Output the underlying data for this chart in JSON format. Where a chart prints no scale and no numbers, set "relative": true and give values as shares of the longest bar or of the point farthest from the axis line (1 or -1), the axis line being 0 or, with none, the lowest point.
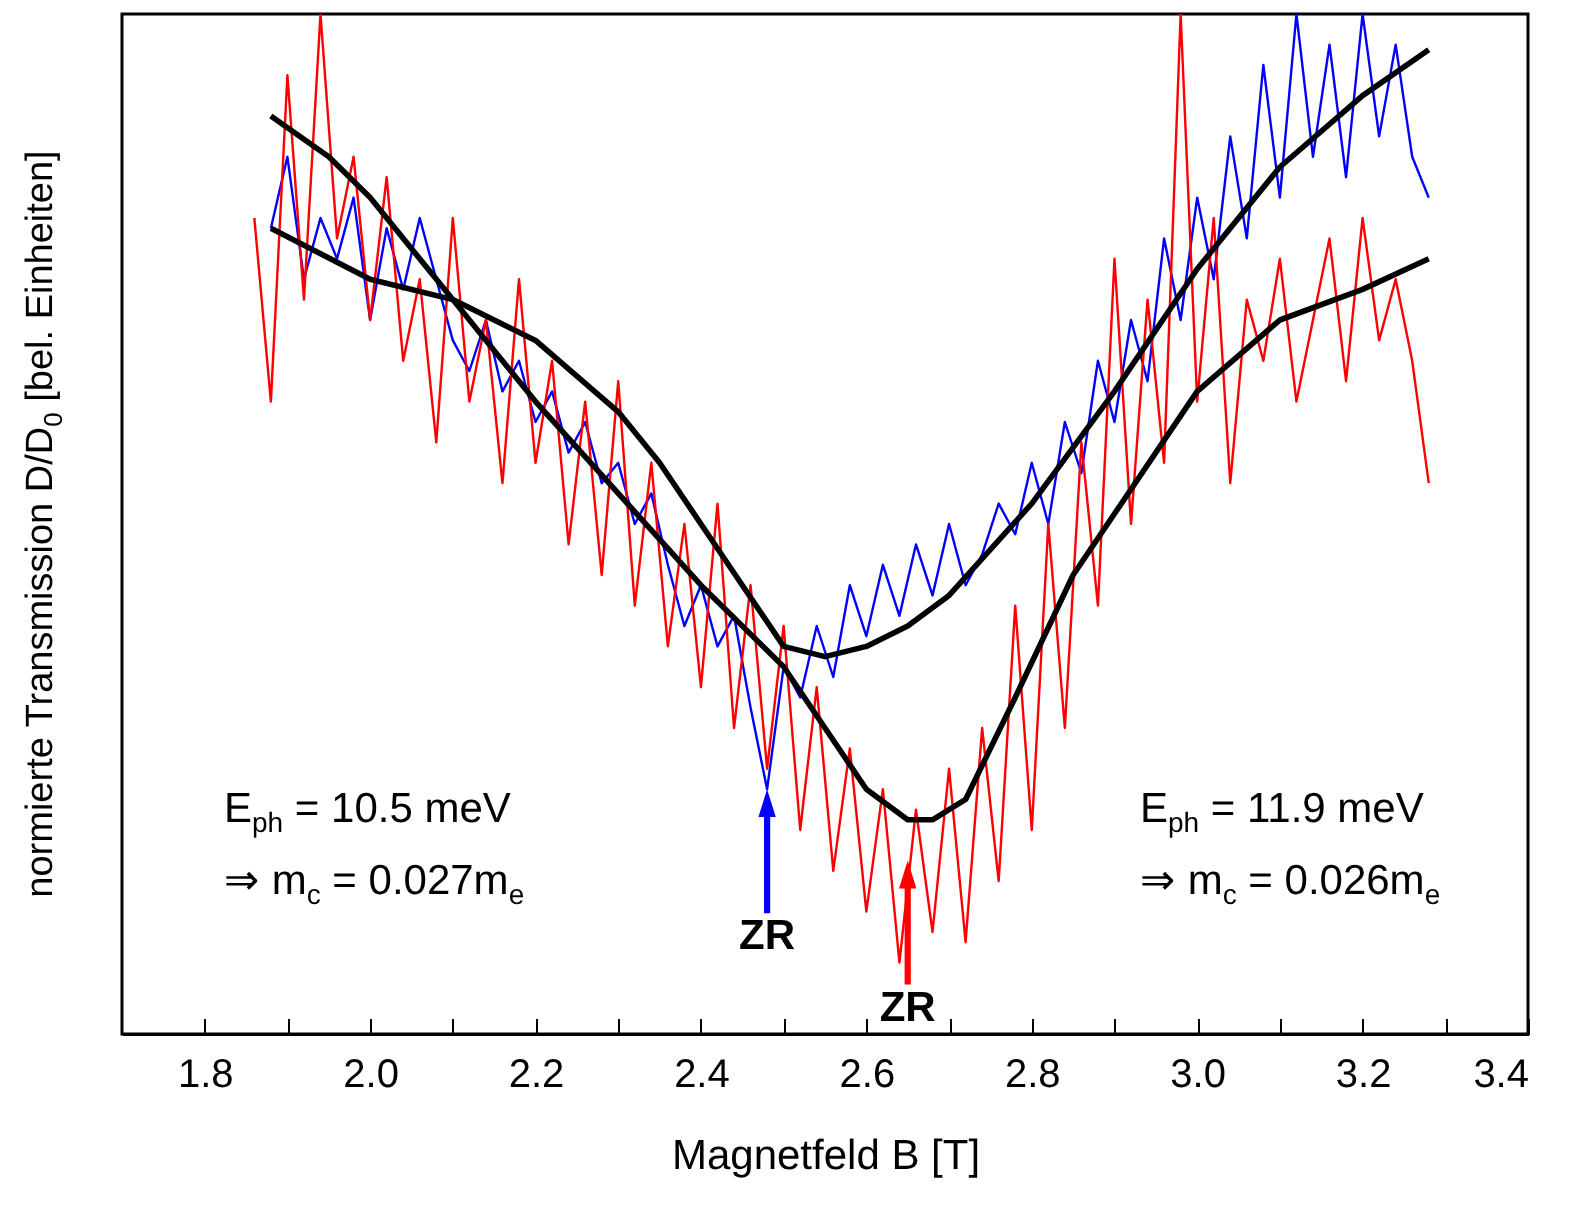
{
  "chart_data": {
    "type": "line",
    "relative": true,
    "xlabel": "Magnetfeld B [T]",
    "ylabel": "normierte Transmission D/D$_{0}$ [bel. Einheiten]",
    "xlim": [
      1.7,
      3.4
    ],
    "xticks": [
      {
        "value": 1.8,
        "label": "1.8"
      },
      {
        "value": 1.9,
        "label": null
      },
      {
        "value": 2.0,
        "label": "2.0"
      },
      {
        "value": 2.1,
        "label": null
      },
      {
        "value": 2.2,
        "label": "2.2"
      },
      {
        "value": 2.3,
        "label": null
      },
      {
        "value": 2.4,
        "label": "2.4"
      },
      {
        "value": 2.5,
        "label": null
      },
      {
        "value": 2.6,
        "label": "2.6"
      },
      {
        "value": 2.7,
        "label": null
      },
      {
        "value": 2.8,
        "label": "2.8"
      },
      {
        "value": 2.9,
        "label": null
      },
      {
        "value": 3.0,
        "label": "3.0"
      },
      {
        "value": 3.1,
        "label": null
      },
      {
        "value": 3.2,
        "label": "3.2"
      },
      {
        "value": 3.3,
        "label": null
      },
      {
        "value": 3.4,
        "label": "3.4"
      }
    ],
    "grid": false,
    "series": [
      {
        "color": "#0000ff",
        "x": [
          1.88,
          1.9,
          1.92,
          1.94,
          1.96,
          1.98,
          2.0,
          2.02,
          2.04,
          2.06,
          2.08,
          2.1,
          2.12,
          2.14,
          2.16,
          2.18,
          2.2,
          2.22,
          2.24,
          2.26,
          2.28,
          2.3,
          2.32,
          2.34,
          2.36,
          2.38,
          2.4,
          2.42,
          2.44,
          2.46,
          2.48,
          2.5,
          2.52,
          2.54,
          2.56,
          2.58,
          2.6,
          2.62,
          2.64,
          2.66,
          2.68,
          2.7,
          2.72,
          2.74,
          2.76,
          2.78,
          2.8,
          2.82,
          2.84,
          2.86,
          2.88,
          2.9,
          2.92,
          2.94,
          2.96,
          2.98,
          3.0,
          3.02,
          3.04,
          3.06,
          3.08,
          3.1,
          3.12,
          3.14,
          3.16,
          3.18,
          3.2,
          3.22,
          3.24,
          3.26,
          3.28
        ],
        "values": [
          0.79,
          0.86,
          0.74,
          0.8,
          0.76,
          0.82,
          0.7,
          0.79,
          0.73,
          0.8,
          0.74,
          0.68,
          0.65,
          0.7,
          0.63,
          0.66,
          0.6,
          0.63,
          0.57,
          0.6,
          0.54,
          0.56,
          0.5,
          0.53,
          0.46,
          0.4,
          0.44,
          0.38,
          0.41,
          0.32,
          0.24,
          0.36,
          0.33,
          0.4,
          0.35,
          0.44,
          0.39,
          0.46,
          0.41,
          0.48,
          0.43,
          0.5,
          0.44,
          0.47,
          0.52,
          0.49,
          0.56,
          0.5,
          0.6,
          0.55,
          0.66,
          0.6,
          0.7,
          0.64,
          0.78,
          0.7,
          0.82,
          0.74,
          0.88,
          0.78,
          0.95,
          0.82,
          1.0,
          0.86,
          0.97,
          0.84,
          1.0,
          0.88,
          0.97,
          0.86,
          0.82
        ]
      },
      {
        "color": "#ff0000",
        "x": [
          1.86,
          1.88,
          1.9,
          1.92,
          1.94,
          1.96,
          1.98,
          2.0,
          2.02,
          2.04,
          2.06,
          2.08,
          2.1,
          2.12,
          2.14,
          2.16,
          2.18,
          2.2,
          2.22,
          2.24,
          2.26,
          2.28,
          2.3,
          2.32,
          2.34,
          2.36,
          2.38,
          2.4,
          2.42,
          2.44,
          2.46,
          2.48,
          2.5,
          2.52,
          2.54,
          2.56,
          2.58,
          2.6,
          2.62,
          2.64,
          2.66,
          2.68,
          2.7,
          2.72,
          2.74,
          2.76,
          2.78,
          2.8,
          2.82,
          2.84,
          2.86,
          2.88,
          2.9,
          2.92,
          2.94,
          2.96,
          2.98,
          3.0,
          3.02,
          3.04,
          3.06,
          3.08,
          3.1,
          3.12,
          3.14,
          3.16,
          3.18,
          3.2,
          3.22,
          3.24,
          3.26,
          3.28
        ],
        "values": [
          0.8,
          0.62,
          0.94,
          0.72,
          1.0,
          0.78,
          0.86,
          0.7,
          0.84,
          0.66,
          0.74,
          0.58,
          0.8,
          0.62,
          0.7,
          0.54,
          0.74,
          0.56,
          0.66,
          0.48,
          0.62,
          0.45,
          0.64,
          0.42,
          0.56,
          0.38,
          0.5,
          0.34,
          0.52,
          0.3,
          0.44,
          0.26,
          0.4,
          0.2,
          0.34,
          0.16,
          0.28,
          0.12,
          0.24,
          0.07,
          0.22,
          0.1,
          0.26,
          0.09,
          0.3,
          0.15,
          0.42,
          0.2,
          0.5,
          0.3,
          0.58,
          0.42,
          0.76,
          0.5,
          0.72,
          0.56,
          1.0,
          0.62,
          0.8,
          0.54,
          0.72,
          0.66,
          0.76,
          0.62,
          0.7,
          0.78,
          0.64,
          0.8,
          0.68,
          0.74,
          0.66,
          0.54
        ]
      },
      {
        "color": "#000000",
        "x": [
          1.88,
          2.0,
          2.1,
          2.2,
          2.3,
          2.35,
          2.4,
          2.45,
          2.5,
          2.55,
          2.6,
          2.65,
          2.7,
          2.8,
          2.9,
          3.0,
          3.1,
          3.2,
          3.28
        ],
        "values": [
          0.79,
          0.74,
          0.72,
          0.68,
          0.61,
          0.56,
          0.5,
          0.44,
          0.38,
          0.37,
          0.38,
          0.4,
          0.43,
          0.52,
          0.63,
          0.75,
          0.85,
          0.92,
          0.965
        ]
      },
      {
        "color": "#000000",
        "x": [
          1.88,
          1.95,
          2.0,
          2.1,
          2.2,
          2.3,
          2.4,
          2.5,
          2.55,
          2.6,
          2.65,
          2.68,
          2.72,
          2.78,
          2.85,
          2.9,
          3.0,
          3.1,
          3.2,
          3.28
        ],
        "values": [
          0.9,
          0.86,
          0.82,
          0.72,
          0.62,
          0.53,
          0.44,
          0.36,
          0.3,
          0.24,
          0.21,
          0.21,
          0.23,
          0.33,
          0.45,
          0.51,
          0.63,
          0.7,
          0.73,
          0.76
        ]
      }
    ],
    "annotations": [
      {
        "text": "ZR",
        "x": 2.48,
        "y": 0.24
      },
      {
        "text": "ZR",
        "x": 2.65,
        "y": 0.17
      },
      "E$_{ph}$ = 10.5 meV",
      "⇒ m$_{c}$ = 0.027m$_{e}$",
      "E$_{ph}$ = 11.9 meV",
      "⇒ m$_{c}$ = 0.026m$_{e}$"
    ]
  }
}
